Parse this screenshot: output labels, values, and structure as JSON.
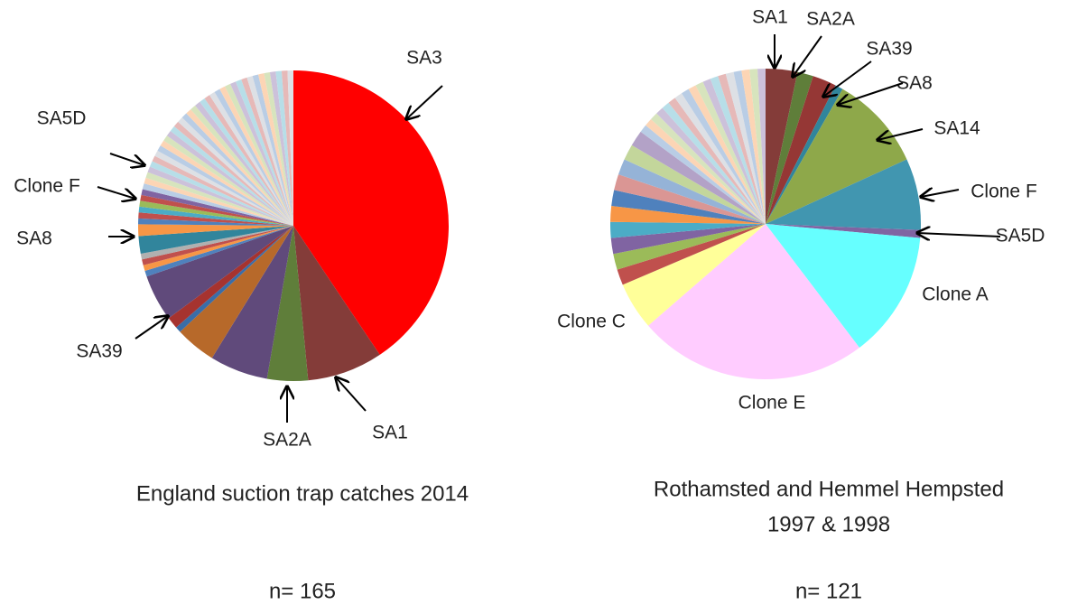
{
  "chart_data": [
    {
      "type": "pie",
      "title": "England suction trap catches  2014",
      "note": "n= 165",
      "categories": [
        "SA3",
        "SA1",
        "SA2A",
        null,
        null,
        null,
        "SA39",
        null,
        null,
        null,
        null,
        null,
        "SA8",
        null,
        null,
        null,
        "Clone F",
        null,
        null,
        "SA5D",
        null,
        null,
        null,
        null,
        null,
        null,
        null,
        null,
        null,
        null,
        null,
        null,
        null,
        null,
        null,
        null,
        null,
        null,
        null,
        null,
        null,
        null,
        null,
        null,
        null,
        null,
        null,
        null,
        null,
        null,
        null,
        null,
        null,
        null,
        null
      ],
      "values": [
        67,
        13,
        7,
        10,
        7,
        1,
        2,
        8,
        1,
        1,
        1,
        1,
        3,
        2,
        1,
        1,
        1,
        1,
        1,
        1,
        1,
        1,
        1,
        1,
        1,
        1,
        1,
        1,
        1,
        1,
        1,
        1,
        1,
        1,
        1,
        1,
        1,
        1,
        1,
        1,
        1,
        1,
        1,
        1,
        1,
        1,
        1,
        1,
        1,
        1,
        1,
        1,
        1,
        1,
        1
      ],
      "colors": [
        "#ff0000",
        "#843c39",
        "#5f7e3a",
        "#604a7b",
        "#b7692a",
        "#3a6da8",
        "#a6332f",
        "#604a7b",
        "#4f81bd",
        "#f79646",
        "#c0504d",
        "#b0b0b0",
        "#31859c",
        "#f79646",
        "#4f81bd",
        "#c0504d",
        "#4bacc6",
        "#9bbb59",
        "#c0504d",
        "#8064a2",
        "#b9cde5",
        "#fcd5b5",
        "#d7e4bd",
        "#ccc1da",
        "#b7dee8",
        "#e6b9b8",
        "#dde0e5",
        "#b9cde5",
        "#fcd5b5",
        "#d7e4bd",
        "#ccc1da",
        "#b7dee8",
        "#e6b9b8",
        "#dde0e5",
        "#b9cde5",
        "#fcd5b5",
        "#d7e4bd",
        "#ccc1da",
        "#b7dee8",
        "#e6b9b8",
        "#dde0e5",
        "#b9cde5",
        "#fcd5b5",
        "#d7e4bd",
        "#ccc1da",
        "#b7dee8",
        "#e6b9b8",
        "#dde0e5",
        "#b9cde5",
        "#fcd5b5",
        "#d7e4bd",
        "#ccc1da",
        "#b7dee8",
        "#e6b9b8",
        "#dde0e5"
      ]
    },
    {
      "type": "pie",
      "title": "Rothamsted and Hemmel Hempsted",
      "subtitle": "1997 & 1998",
      "note": "n= 121",
      "categories": [
        "SA1",
        "SA2A",
        "SA39",
        "SA8",
        "SA14",
        "Clone F",
        "SA5D",
        "Clone A",
        "Clone E",
        "Clone C",
        null,
        null,
        null,
        null,
        null,
        null,
        null,
        null,
        null,
        null,
        null,
        null,
        null,
        null,
        null,
        null,
        null,
        null,
        null,
        null,
        null,
        null,
        null,
        null,
        null,
        null,
        null,
        null
      ],
      "values": [
        4,
        2,
        3,
        1,
        12,
        9,
        1,
        16,
        29,
        6,
        2,
        2,
        2,
        2,
        2,
        2,
        2,
        2,
        2,
        2,
        1,
        1,
        1,
        1,
        1,
        1,
        1,
        1,
        1,
        1,
        1,
        1,
        1,
        1,
        1,
        1,
        1,
        1
      ],
      "colors": [
        "#843c39",
        "#5f7e3a",
        "#953735",
        "#31859c",
        "#8ea84a",
        "#4196b0",
        "#8064a2",
        "#66ffff",
        "#ffccff",
        "#ffff99",
        "#c0504d",
        "#9bbb59",
        "#8064a2",
        "#4bacc6",
        "#f79646",
        "#4f81bd",
        "#da9694",
        "#95b3d7",
        "#c3d69b",
        "#b3a2c7",
        "#b9cde5",
        "#fcd5b5",
        "#d7e4bd",
        "#ccc1da",
        "#b7dee8",
        "#e6b9b8",
        "#dde0e5",
        "#b9cde5",
        "#fcd5b5",
        "#d7e4bd",
        "#ccc1da",
        "#b7dee8",
        "#e6b9b8",
        "#dde0e5",
        "#b9cde5",
        "#fcd5b5",
        "#d7e4bd",
        "#ccc1da"
      ]
    }
  ]
}
